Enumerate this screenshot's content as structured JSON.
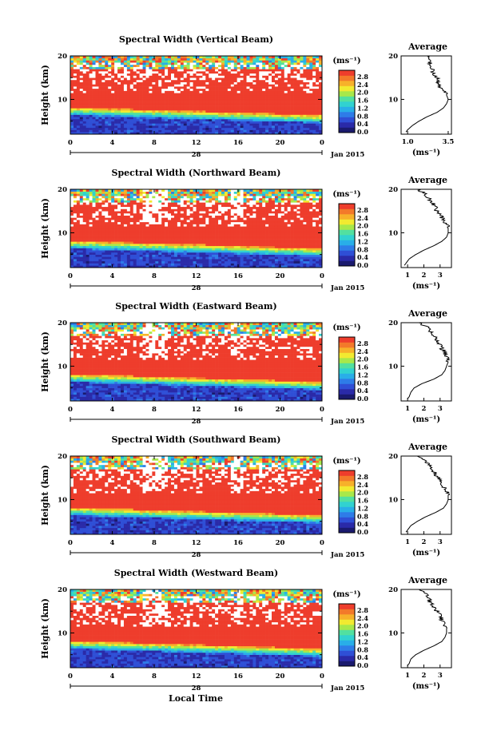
{
  "chart_data": [
    {
      "type": "heatmap",
      "title": "Spectral Width (Vertical Beam)",
      "ylabel": "Height (km)",
      "x_ticks": [
        "0",
        "4",
        "8",
        "12",
        "16",
        "20",
        "0"
      ],
      "y_ticks": [
        "10",
        "20"
      ],
      "date_label": "28",
      "month_label": "Jan 2015",
      "colorbar": {
        "unit": "(ms⁻¹)",
        "ticks": [
          "0.0",
          "0.4",
          "0.8",
          "1.2",
          "1.6",
          "2.0",
          "2.4",
          "2.8"
        ]
      },
      "average": {
        "title": "Average",
        "xlabel": "(ms⁻¹)",
        "x_ticks": [
          "1.0",
          "3.5"
        ],
        "xlim": [
          0.6,
          3.7
        ],
        "height_km": [
          2.5,
          3,
          4,
          5,
          6,
          7,
          8,
          9,
          10,
          11,
          12,
          13,
          14,
          15,
          16,
          17,
          18,
          19,
          20
        ],
        "width": [
          0.9,
          1.0,
          1.3,
          1.7,
          2.2,
          2.8,
          3.2,
          3.4,
          3.5,
          3.4,
          3.2,
          3.0,
          2.9,
          2.8,
          2.6,
          2.5,
          2.4,
          2.3,
          2.2
        ]
      }
    },
    {
      "type": "heatmap",
      "title": "Spectral Width (Northward Beam)",
      "ylabel": "Height (km)",
      "x_ticks": [
        "0",
        "4",
        "8",
        "12",
        "16",
        "20",
        "0"
      ],
      "y_ticks": [
        "10",
        "20"
      ],
      "date_label": "28",
      "month_label": "Jan 2015",
      "colorbar": {
        "unit": "(ms⁻¹)",
        "ticks": [
          "0.0",
          "0.4",
          "0.8",
          "1.2",
          "1.6",
          "2.0",
          "2.4",
          "2.8"
        ]
      },
      "average": {
        "title": "Average",
        "xlabel": "(ms⁻¹)",
        "x_ticks": [
          "1",
          "2",
          "3"
        ],
        "xlim": [
          0.6,
          3.7
        ],
        "height_km": [
          2.5,
          3,
          4,
          5,
          6,
          7,
          8,
          9,
          10,
          11,
          12,
          13,
          14,
          15,
          16,
          17,
          18,
          19,
          20
        ],
        "width": [
          0.8,
          0.9,
          1.1,
          1.5,
          2.0,
          2.6,
          3.1,
          3.4,
          3.5,
          3.5,
          3.4,
          3.2,
          3.0,
          2.8,
          2.7,
          2.5,
          2.3,
          2.1,
          1.6
        ]
      }
    },
    {
      "type": "heatmap",
      "title": "Spectral Width (Eastward Beam)",
      "ylabel": "Height (km)",
      "x_ticks": [
        "0",
        "4",
        "8",
        "12",
        "16",
        "20",
        "0"
      ],
      "y_ticks": [
        "10",
        "20"
      ],
      "date_label": "28",
      "month_label": "Jan 2015",
      "colorbar": {
        "unit": "(ms⁻¹)",
        "ticks": [
          "0.0",
          "0.4",
          "0.8",
          "1.2",
          "1.6",
          "2.0",
          "2.4",
          "2.8"
        ]
      },
      "average": {
        "title": "Average",
        "xlabel": "(ms⁻¹)",
        "x_ticks": [
          "1",
          "2",
          "3"
        ],
        "xlim": [
          0.6,
          3.7
        ],
        "height_km": [
          2.5,
          3,
          4,
          5,
          6,
          7,
          8,
          9,
          10,
          11,
          12,
          13,
          14,
          15,
          16,
          17,
          18,
          19,
          20
        ],
        "width": [
          1.0,
          1.1,
          1.2,
          1.4,
          1.9,
          2.6,
          3.1,
          3.3,
          3.4,
          3.5,
          3.4,
          3.3,
          3.1,
          3.0,
          2.8,
          2.6,
          2.4,
          2.2,
          1.7
        ]
      }
    },
    {
      "type": "heatmap",
      "title": "Spectral Width (Southward Beam)",
      "ylabel": "Height (km)",
      "x_ticks": [
        "0",
        "4",
        "8",
        "12",
        "16",
        "20",
        "0"
      ],
      "y_ticks": [
        "10",
        "20"
      ],
      "date_label": "28",
      "month_label": "Jan 2015",
      "colorbar": {
        "unit": "(ms⁻¹)",
        "ticks": [
          "0.0",
          "0.4",
          "0.8",
          "1.2",
          "1.6",
          "2.0",
          "2.4",
          "2.8"
        ]
      },
      "average": {
        "title": "Average",
        "xlabel": "(ms⁻¹)",
        "x_ticks": [
          "1",
          "2",
          "3"
        ],
        "xlim": [
          0.6,
          3.7
        ],
        "height_km": [
          2.5,
          3,
          4,
          5,
          6,
          7,
          8,
          9,
          10,
          11,
          12,
          13,
          14,
          15,
          16,
          17,
          18,
          19,
          20
        ],
        "width": [
          0.9,
          1.0,
          1.2,
          1.6,
          2.1,
          2.7,
          3.2,
          3.4,
          3.5,
          3.5,
          3.4,
          3.2,
          3.1,
          2.9,
          2.7,
          2.5,
          2.3,
          2.1,
          1.6
        ]
      }
    },
    {
      "type": "heatmap",
      "title": "Spectral Width (Westward Beam)",
      "ylabel": "Height (km)",
      "x_ticks": [
        "0",
        "4",
        "8",
        "12",
        "16",
        "20",
        "0"
      ],
      "y_ticks": [
        "10",
        "20"
      ],
      "date_label": "28",
      "month_label": "Jan 2015",
      "colorbar": {
        "unit": "(ms⁻¹)",
        "ticks": [
          "0.0",
          "0.4",
          "0.8",
          "1.2",
          "1.6",
          "2.0",
          "2.4",
          "2.8"
        ]
      },
      "average": {
        "title": "Average",
        "xlabel": "(ms⁻¹)",
        "x_ticks": [
          "1",
          "2",
          "3"
        ],
        "xlim": [
          0.6,
          3.7
        ],
        "height_km": [
          2.5,
          3,
          4,
          5,
          6,
          7,
          8,
          9,
          10,
          11,
          12,
          13,
          14,
          15,
          16,
          17,
          18,
          19,
          20
        ],
        "width": [
          1.0,
          1.1,
          1.2,
          1.5,
          2.0,
          2.6,
          3.1,
          3.3,
          3.4,
          3.4,
          3.3,
          3.1,
          3.0,
          2.8,
          2.6,
          2.4,
          2.3,
          2.1,
          1.7
        ]
      }
    }
  ],
  "xlabel": "Local Time",
  "colormap": [
    "#1a1a6e",
    "#2a2aa8",
    "#2f4fd6",
    "#2e7ce8",
    "#29aee8",
    "#31d2d0",
    "#52e0a0",
    "#a8e84a",
    "#f2ea30",
    "#f7b12a",
    "#f3792a",
    "#ee3d2c"
  ]
}
